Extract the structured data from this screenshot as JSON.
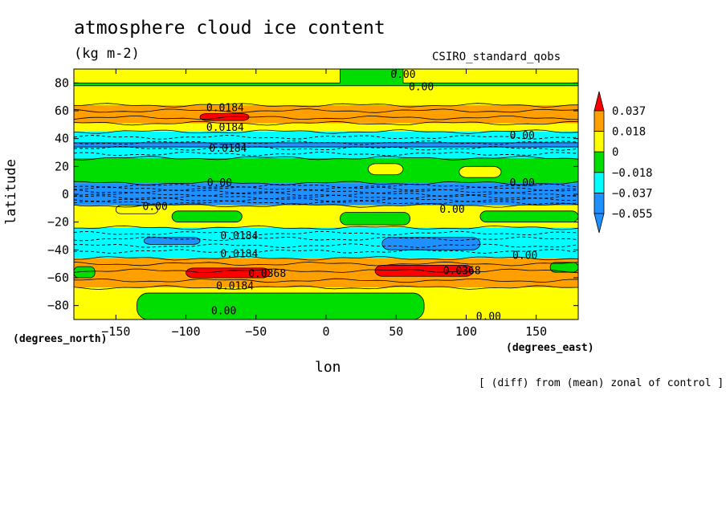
{
  "chart_data": {
    "type": "heatmap",
    "title": "atmosphere cloud ice content",
    "units": "(kg m-2)",
    "dataset": "CSIRO_standard_qobs",
    "xlabel": "lon",
    "xlabel_units": "(degrees_east)",
    "ylabel": "latitude",
    "ylabel_units": "(degrees_north)",
    "footnote": "[ (diff) from (mean) zonal of control ]",
    "xlim": [
      -180,
      180
    ],
    "ylim": [
      -90,
      90
    ],
    "x_ticks": [
      -150,
      -100,
      -50,
      0,
      50,
      100,
      150
    ],
    "x_tick_labels": [
      "−150",
      "−100",
      "−50",
      "0",
      "50",
      "100",
      "150"
    ],
    "y_ticks": [
      80,
      60,
      40,
      20,
      0,
      -20,
      -40,
      -60,
      -80
    ],
    "y_tick_labels": [
      "80",
      "60",
      "40",
      "20",
      "0",
      "−20",
      "−40",
      "−60",
      "−80"
    ],
    "colorbar": {
      "levels": [
        0.037,
        0.018,
        0,
        -0.018,
        -0.037,
        -0.055
      ],
      "labels": [
        "0.037",
        "0.018",
        "0",
        "−0.018",
        "−0.037",
        "−0.055"
      ],
      "colors": [
        "#ff0000",
        "#ff9f00",
        "#ffff00",
        "#00dd00",
        "#00ffff",
        "#1e90ff"
      ]
    },
    "zonal_bands": [
      {
        "lat_min": 64,
        "lat_max": 90,
        "level": "0 to 0.018"
      },
      {
        "lat_min": 51,
        "lat_max": 64,
        "level": "0.018 to 0.037"
      },
      {
        "lat_min": 45,
        "lat_max": 51,
        "level": "0 to 0.018"
      },
      {
        "lat_min": 26,
        "lat_max": 45,
        "level": "-0.037 to -0.018"
      },
      {
        "lat_min": 8,
        "lat_max": 26,
        "level": "-0.018 to 0"
      },
      {
        "lat_min": -8,
        "lat_max": 8,
        "level": "-0.055 to -0.037"
      },
      {
        "lat_min": -24,
        "lat_max": -8,
        "level": "0 to 0.018"
      },
      {
        "lat_min": -46,
        "lat_max": -24,
        "level": "-0.037 to -0.018"
      },
      {
        "lat_min": -67,
        "lat_max": -46,
        "level": "0.018 to 0.037"
      },
      {
        "lat_min": -90,
        "lat_max": -67,
        "level": "0 to 0.018"
      }
    ],
    "contour_labels": [
      {
        "text": "0.00",
        "lon": 55,
        "lat": 86
      },
      {
        "text": "0.00",
        "lon": 68,
        "lat": 77
      },
      {
        "text": "0.0184",
        "lon": -72,
        "lat": 62
      },
      {
        "text": "0.0184",
        "lon": -72,
        "lat": 48
      },
      {
        "text": "0.0184",
        "lon": -70,
        "lat": 33
      },
      {
        "text": "0.00",
        "lon": 140,
        "lat": 42
      },
      {
        "text": "0.00",
        "lon": -76,
        "lat": 8
      },
      {
        "text": "0.00",
        "lon": 140,
        "lat": 8
      },
      {
        "text": "0.00",
        "lon": -122,
        "lat": -9
      },
      {
        "text": "0.00",
        "lon": 90,
        "lat": -11
      },
      {
        "text": "0.0184",
        "lon": -62,
        "lat": -30
      },
      {
        "text": "0.0184",
        "lon": -62,
        "lat": -43
      },
      {
        "text": "0.0368",
        "lon": -42,
        "lat": -57
      },
      {
        "text": "0.0368",
        "lon": 97,
        "lat": -55
      },
      {
        "text": "0.0184",
        "lon": -65,
        "lat": -66
      },
      {
        "text": "0.00",
        "lon": 142,
        "lat": -44
      },
      {
        "text": "0.00",
        "lon": -73,
        "lat": -84
      },
      {
        "text": "0.00",
        "lon": 116,
        "lat": -88
      }
    ]
  }
}
